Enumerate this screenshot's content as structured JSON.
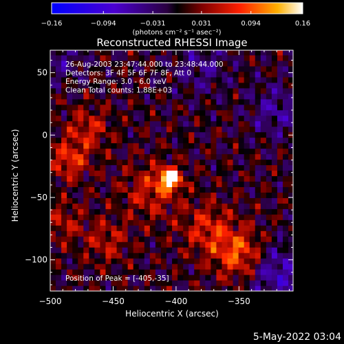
{
  "chart_data": {
    "type": "heatmap",
    "title": "Reconstructed RHESSI Image",
    "xlabel": "Heliocentric X (arcsec)",
    "ylabel": "Heliocentric Y (arcsec)",
    "xlim": [
      -500,
      -307
    ],
    "ylim": [
      -125,
      68
    ],
    "x_ticks": [
      -500,
      -450,
      -400,
      -350
    ],
    "x_tick_labels": [
      "−500",
      "−450",
      "−400",
      "−350"
    ],
    "y_ticks": [
      -100,
      -50,
      0,
      50
    ],
    "y_tick_labels": [
      "−100",
      "−50",
      "0",
      "50"
    ],
    "colorbar": {
      "range": [
        -0.16,
        0.16
      ],
      "ticks": [
        -0.16,
        -0.094,
        -0.031,
        0.031,
        0.094,
        0.16
      ],
      "tick_labels": [
        "−0.16",
        "−0.094",
        "−0.031",
        "0.031",
        "0.094",
        "0.16"
      ],
      "units_label": "(photons cm⁻² s⁻¹ asec⁻²)"
    },
    "annotations": [
      "26-Aug-2003 23:47:44.000 to 23:48:44.000",
      "Detectors: 3F 4F 5F 6F 7F 8F, Att 0",
      "Energy Range: 3.0 - 6.0 keV",
      "Clean     Total counts: 1.88E+03"
    ],
    "peak_label": "Position of Peak = [-405,-35]",
    "peak": {
      "x": -405,
      "y": -35
    },
    "grid": false,
    "legend": "none"
  },
  "footer": {
    "date": "5-May-2022 03:04"
  }
}
